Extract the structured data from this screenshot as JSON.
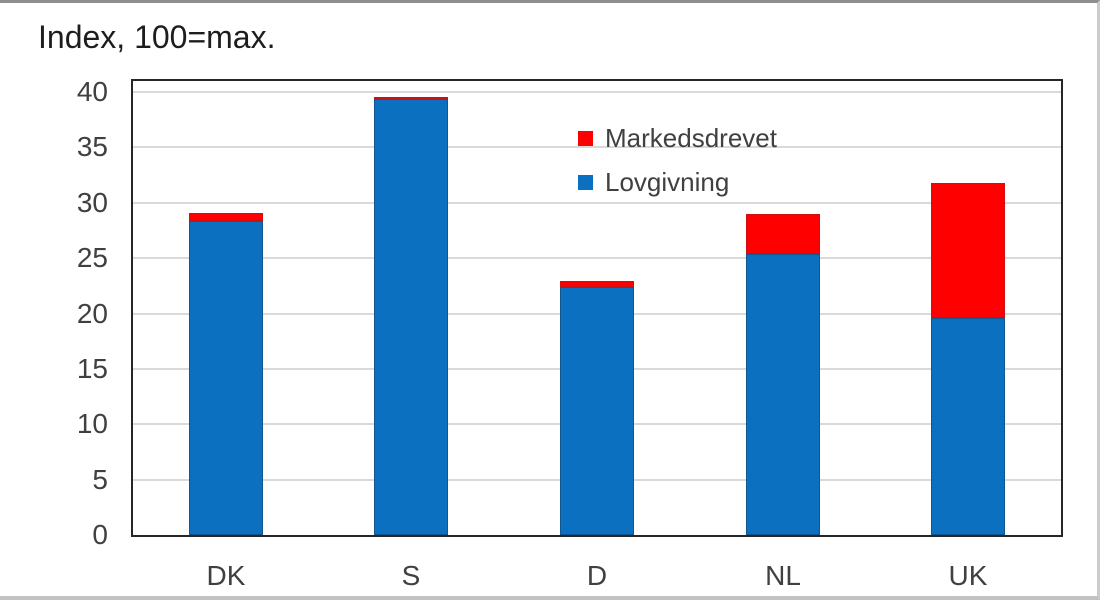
{
  "figure": {
    "title": "Index, 100=max."
  },
  "chart_data": {
    "type": "bar",
    "stacked": true,
    "title": "Index, 100=max.",
    "xlabel": "",
    "ylabel": "",
    "categories": [
      "DK",
      "S",
      "D",
      "NL",
      "UK"
    ],
    "series": [
      {
        "name": "Lovgivning",
        "color": "#0b70c0",
        "border_color": "#11568f",
        "values": [
          28.4,
          39.4,
          22.4,
          25.4,
          19.6
        ]
      },
      {
        "name": "Markedsdrevet",
        "color": "#fe0000",
        "border_color": "#cf1010",
        "values": [
          0.7,
          0.2,
          0.5,
          3.6,
          12.2
        ]
      }
    ],
    "totals": [
      29.1,
      39.6,
      22.9,
      29.0,
      31.8
    ],
    "ylim": [
      0,
      41
    ],
    "yticks": [
      0,
      5,
      10,
      15,
      20,
      25,
      30,
      35,
      40
    ],
    "grid": "horizontal",
    "gridline_color": "#d9d9d9",
    "text_color": "#404040",
    "legend": {
      "position": "inside-top-right",
      "entries": [
        {
          "label": "Markedsdrevet",
          "color": "#fe0000"
        },
        {
          "label": "Lovgivning",
          "color": "#0b70c0"
        }
      ]
    }
  }
}
